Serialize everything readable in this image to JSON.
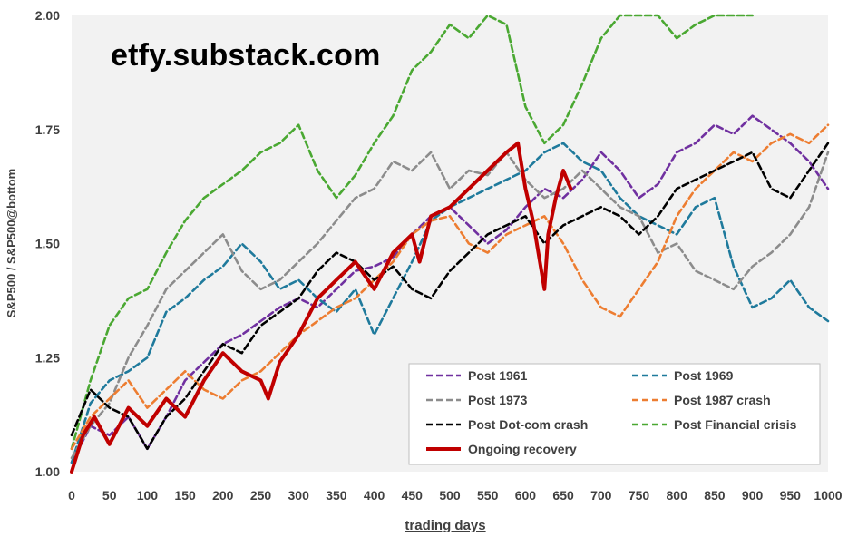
{
  "watermark": "etfy.substack.com",
  "chart_data": {
    "type": "line",
    "xlabel": "trading days",
    "ylabel": "S&P500 / S&P500@bottom",
    "xlim": [
      0,
      1000
    ],
    "ylim": [
      1.0,
      2.0
    ],
    "x_ticks": [
      "0",
      "50",
      "100",
      "150",
      "200",
      "250",
      "300",
      "350",
      "400",
      "450",
      "500",
      "550",
      "600",
      "650",
      "700",
      "750",
      "800",
      "850",
      "900",
      "950",
      "1000"
    ],
    "y_ticks": [
      "1.00",
      "1.25",
      "1.50",
      "1.75",
      "2.00"
    ],
    "grid": false,
    "plot_background": "#f2f2f2",
    "legend_position": "bottom-right",
    "series": [
      {
        "name": "Post 1961",
        "color": "#7030a0",
        "dash": true,
        "x": [
          0,
          25,
          50,
          75,
          100,
          125,
          150,
          175,
          200,
          225,
          250,
          275,
          300,
          325,
          350,
          375,
          400,
          425,
          450,
          475,
          500,
          525,
          550,
          575,
          600,
          625,
          650,
          675,
          700,
          725,
          750,
          775,
          800,
          825,
          850,
          875,
          900,
          925,
          950,
          975,
          1000
        ],
        "y": [
          1.02,
          1.1,
          1.08,
          1.12,
          1.05,
          1.12,
          1.2,
          1.24,
          1.28,
          1.3,
          1.33,
          1.36,
          1.38,
          1.36,
          1.4,
          1.44,
          1.45,
          1.47,
          1.52,
          1.56,
          1.58,
          1.54,
          1.5,
          1.53,
          1.58,
          1.62,
          1.6,
          1.64,
          1.7,
          1.66,
          1.6,
          1.63,
          1.7,
          1.72,
          1.76,
          1.74,
          1.78,
          1.75,
          1.72,
          1.68,
          1.62
        ]
      },
      {
        "name": "Post 1969",
        "color": "#1f7a9c",
        "dash": true,
        "x": [
          0,
          25,
          50,
          75,
          100,
          125,
          150,
          175,
          200,
          225,
          250,
          275,
          300,
          325,
          350,
          375,
          400,
          425,
          450,
          475,
          500,
          525,
          550,
          575,
          600,
          625,
          650,
          675,
          700,
          725,
          750,
          775,
          800,
          825,
          850,
          875,
          900,
          925,
          950,
          975,
          1000
        ],
        "y": [
          1.02,
          1.15,
          1.2,
          1.22,
          1.25,
          1.35,
          1.38,
          1.42,
          1.45,
          1.5,
          1.46,
          1.4,
          1.42,
          1.38,
          1.35,
          1.4,
          1.3,
          1.38,
          1.46,
          1.55,
          1.58,
          1.6,
          1.62,
          1.64,
          1.66,
          1.7,
          1.72,
          1.68,
          1.66,
          1.6,
          1.56,
          1.54,
          1.52,
          1.58,
          1.6,
          1.45,
          1.36,
          1.38,
          1.42,
          1.36,
          1.33
        ]
      },
      {
        "name": "Post 1973",
        "color": "#8c8c8c",
        "dash": true,
        "x": [
          0,
          25,
          50,
          75,
          100,
          125,
          150,
          175,
          200,
          225,
          250,
          275,
          300,
          325,
          350,
          375,
          400,
          425,
          450,
          475,
          500,
          525,
          550,
          575,
          600,
          625,
          650,
          675,
          700,
          725,
          750,
          775,
          800,
          825,
          850,
          875,
          900,
          925,
          950,
          975,
          1000
        ],
        "y": [
          1.03,
          1.1,
          1.15,
          1.25,
          1.32,
          1.4,
          1.44,
          1.48,
          1.52,
          1.44,
          1.4,
          1.42,
          1.46,
          1.5,
          1.55,
          1.6,
          1.62,
          1.68,
          1.66,
          1.7,
          1.62,
          1.66,
          1.65,
          1.7,
          1.64,
          1.6,
          1.62,
          1.66,
          1.62,
          1.58,
          1.56,
          1.48,
          1.5,
          1.44,
          1.42,
          1.4,
          1.45,
          1.48,
          1.52,
          1.58,
          1.7
        ]
      },
      {
        "name": "Post 1987 crash",
        "color": "#ed7d31",
        "dash": true,
        "x": [
          0,
          25,
          50,
          75,
          100,
          125,
          150,
          175,
          200,
          225,
          250,
          275,
          300,
          325,
          350,
          375,
          400,
          425,
          450,
          475,
          500,
          525,
          550,
          575,
          600,
          625,
          650,
          675,
          700,
          725,
          750,
          775,
          800,
          825,
          850,
          875,
          900,
          925,
          950,
          975,
          1000
        ],
        "y": [
          1.05,
          1.12,
          1.16,
          1.2,
          1.14,
          1.18,
          1.22,
          1.18,
          1.16,
          1.2,
          1.22,
          1.26,
          1.3,
          1.33,
          1.36,
          1.38,
          1.42,
          1.46,
          1.52,
          1.55,
          1.56,
          1.5,
          1.48,
          1.52,
          1.54,
          1.56,
          1.5,
          1.42,
          1.36,
          1.34,
          1.4,
          1.46,
          1.56,
          1.62,
          1.66,
          1.7,
          1.68,
          1.72,
          1.74,
          1.72,
          1.76
        ]
      },
      {
        "name": "Post Dot-com crash",
        "color": "#000000",
        "dash": true,
        "x": [
          0,
          25,
          50,
          75,
          100,
          125,
          150,
          175,
          200,
          225,
          250,
          275,
          300,
          325,
          350,
          375,
          400,
          425,
          450,
          475,
          500,
          525,
          550,
          575,
          600,
          625,
          650,
          675,
          700,
          725,
          750,
          775,
          800,
          825,
          850,
          875,
          900,
          925,
          950,
          975,
          1000
        ],
        "y": [
          1.08,
          1.18,
          1.14,
          1.12,
          1.05,
          1.12,
          1.16,
          1.22,
          1.28,
          1.26,
          1.32,
          1.35,
          1.38,
          1.44,
          1.48,
          1.46,
          1.42,
          1.45,
          1.4,
          1.38,
          1.44,
          1.48,
          1.52,
          1.54,
          1.56,
          1.5,
          1.54,
          1.56,
          1.58,
          1.56,
          1.52,
          1.56,
          1.62,
          1.64,
          1.66,
          1.68,
          1.7,
          1.62,
          1.6,
          1.66,
          1.72
        ]
      },
      {
        "name": "Post Financial crisis",
        "color": "#4aa832",
        "dash": true,
        "x": [
          0,
          25,
          50,
          75,
          100,
          125,
          150,
          175,
          200,
          225,
          250,
          275,
          300,
          325,
          350,
          375,
          400,
          425,
          450,
          475,
          500,
          525,
          550,
          575,
          600,
          625,
          650,
          675,
          700,
          725,
          750,
          775,
          800,
          825,
          850,
          875,
          900
        ],
        "y": [
          1.05,
          1.2,
          1.32,
          1.38,
          1.4,
          1.48,
          1.55,
          1.6,
          1.63,
          1.66,
          1.7,
          1.72,
          1.76,
          1.66,
          1.6,
          1.65,
          1.72,
          1.78,
          1.88,
          1.92,
          1.98,
          1.95,
          2.0,
          1.98,
          1.8,
          1.72,
          1.76,
          1.85,
          1.95,
          2.0,
          2.0,
          2.0,
          1.95,
          1.98,
          2.0,
          2.0,
          2.0
        ]
      },
      {
        "name": "Ongoing recovery",
        "color": "#c00000",
        "dash": false,
        "bold": true,
        "x": [
          0,
          15,
          30,
          50,
          75,
          100,
          125,
          150,
          175,
          200,
          225,
          250,
          260,
          275,
          300,
          325,
          350,
          375,
          400,
          425,
          450,
          460,
          475,
          500,
          525,
          550,
          575,
          590,
          600,
          610,
          620,
          625,
          630,
          640,
          650,
          660
        ],
        "y": [
          1.0,
          1.08,
          1.12,
          1.06,
          1.14,
          1.1,
          1.16,
          1.12,
          1.2,
          1.26,
          1.22,
          1.2,
          1.16,
          1.24,
          1.3,
          1.38,
          1.42,
          1.46,
          1.4,
          1.48,
          1.52,
          1.46,
          1.56,
          1.58,
          1.62,
          1.66,
          1.7,
          1.72,
          1.62,
          1.55,
          1.45,
          1.4,
          1.52,
          1.6,
          1.66,
          1.62
        ]
      }
    ]
  }
}
